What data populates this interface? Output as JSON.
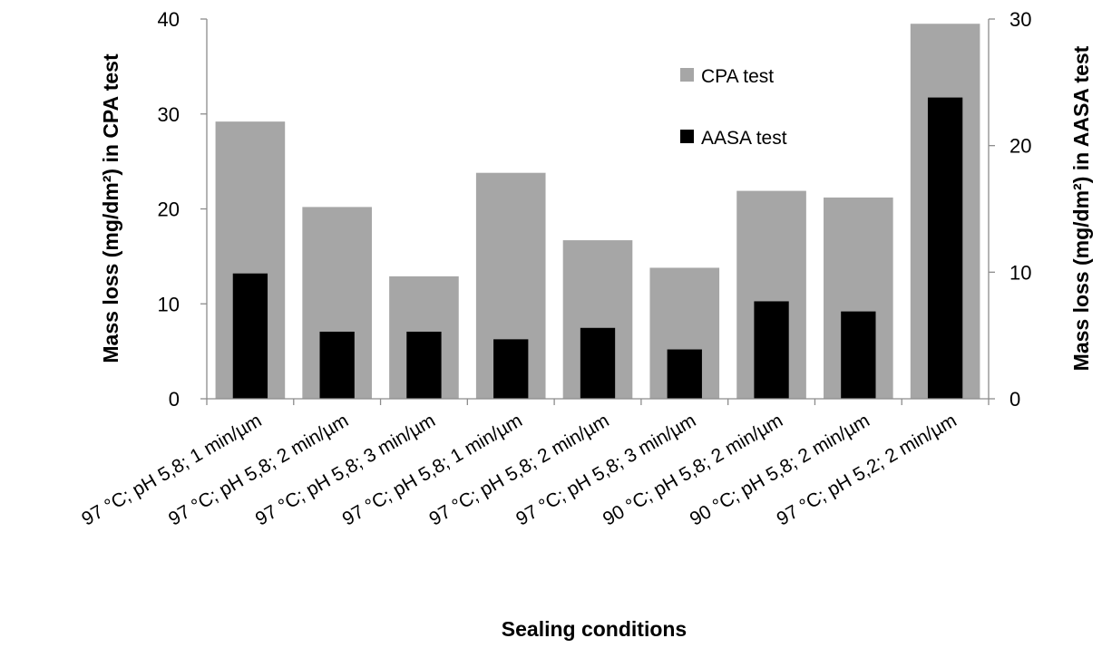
{
  "chart_data": {
    "type": "bar",
    "title": "",
    "xlabel": "Sealing conditions",
    "ylabel_left": "Mass loss (mg/dm²) in CPA test",
    "ylabel_right": "Mass loss (mg/dm²) in AASA test",
    "categories": [
      "97 °C; pH 5,8; 1 min/µm",
      "97 °C; pH 5,8; 2 min/µm",
      "97 °C; pH 5,8; 3 min/µm",
      "97 °C; pH 5,8; 1 min/µm",
      "97 °C; pH 5,8; 2 min/µm",
      "97 °C; pH 5,8; 3 min/µm",
      "90 °C; pH 5,8; 2 min/µm",
      "90 °C; pH 5,8; 2 min/µm",
      "97 °C; pH 5,2; 2 min/µm"
    ],
    "series": [
      {
        "name": "CPA test",
        "axis": "left",
        "color": "#a6a6a6",
        "values": [
          29.2,
          20.2,
          12.9,
          23.8,
          16.7,
          13.8,
          21.9,
          21.2,
          39.5
        ]
      },
      {
        "name": "AASA test",
        "axis": "right",
        "color": "#000000",
        "values": [
          9.9,
          5.3,
          5.3,
          4.7,
          5.6,
          3.9,
          7.7,
          6.9,
          23.8
        ]
      }
    ],
    "ylim_left": [
      0,
      40
    ],
    "yticks_left": [
      "0",
      "10",
      "20",
      "30",
      "40"
    ],
    "ylim_right": [
      0,
      30
    ],
    "yticks_right": [
      "0",
      "10",
      "20",
      "30"
    ],
    "grid": false,
    "legend_position": "top-right"
  }
}
